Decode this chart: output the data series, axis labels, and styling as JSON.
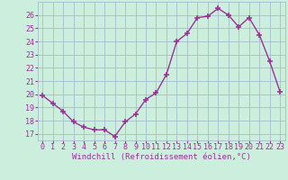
{
  "x": [
    0,
    1,
    2,
    3,
    4,
    5,
    6,
    7,
    8,
    9,
    10,
    11,
    12,
    13,
    14,
    15,
    16,
    17,
    18,
    19,
    20,
    21,
    22,
    23
  ],
  "y": [
    19.9,
    19.3,
    18.7,
    17.9,
    17.5,
    17.3,
    17.3,
    16.8,
    17.9,
    18.5,
    19.6,
    20.1,
    21.5,
    24.0,
    24.6,
    25.8,
    25.9,
    26.5,
    26.0,
    25.1,
    25.8,
    24.5,
    22.5,
    20.2
  ],
  "line_color": "#993399",
  "marker": "+",
  "markersize": 4,
  "markeredgewidth": 1.2,
  "linewidth": 1.0,
  "xlabel": "Windchill (Refroidissement éolien,°C)",
  "ylabel": "",
  "title": "",
  "xlim": [
    -0.5,
    23.5
  ],
  "ylim": [
    16.5,
    27.0
  ],
  "yticks": [
    17,
    18,
    19,
    20,
    21,
    22,
    23,
    24,
    25,
    26
  ],
  "xticks": [
    0,
    1,
    2,
    3,
    4,
    5,
    6,
    7,
    8,
    9,
    10,
    11,
    12,
    13,
    14,
    15,
    16,
    17,
    18,
    19,
    20,
    21,
    22,
    23
  ],
  "bg_color": "#cceedd",
  "grid_color": "#aabbcc",
  "tick_label_color": "#993399",
  "xlabel_color": "#993399",
  "xlabel_fontsize": 6.5,
  "tick_fontsize": 6.0
}
